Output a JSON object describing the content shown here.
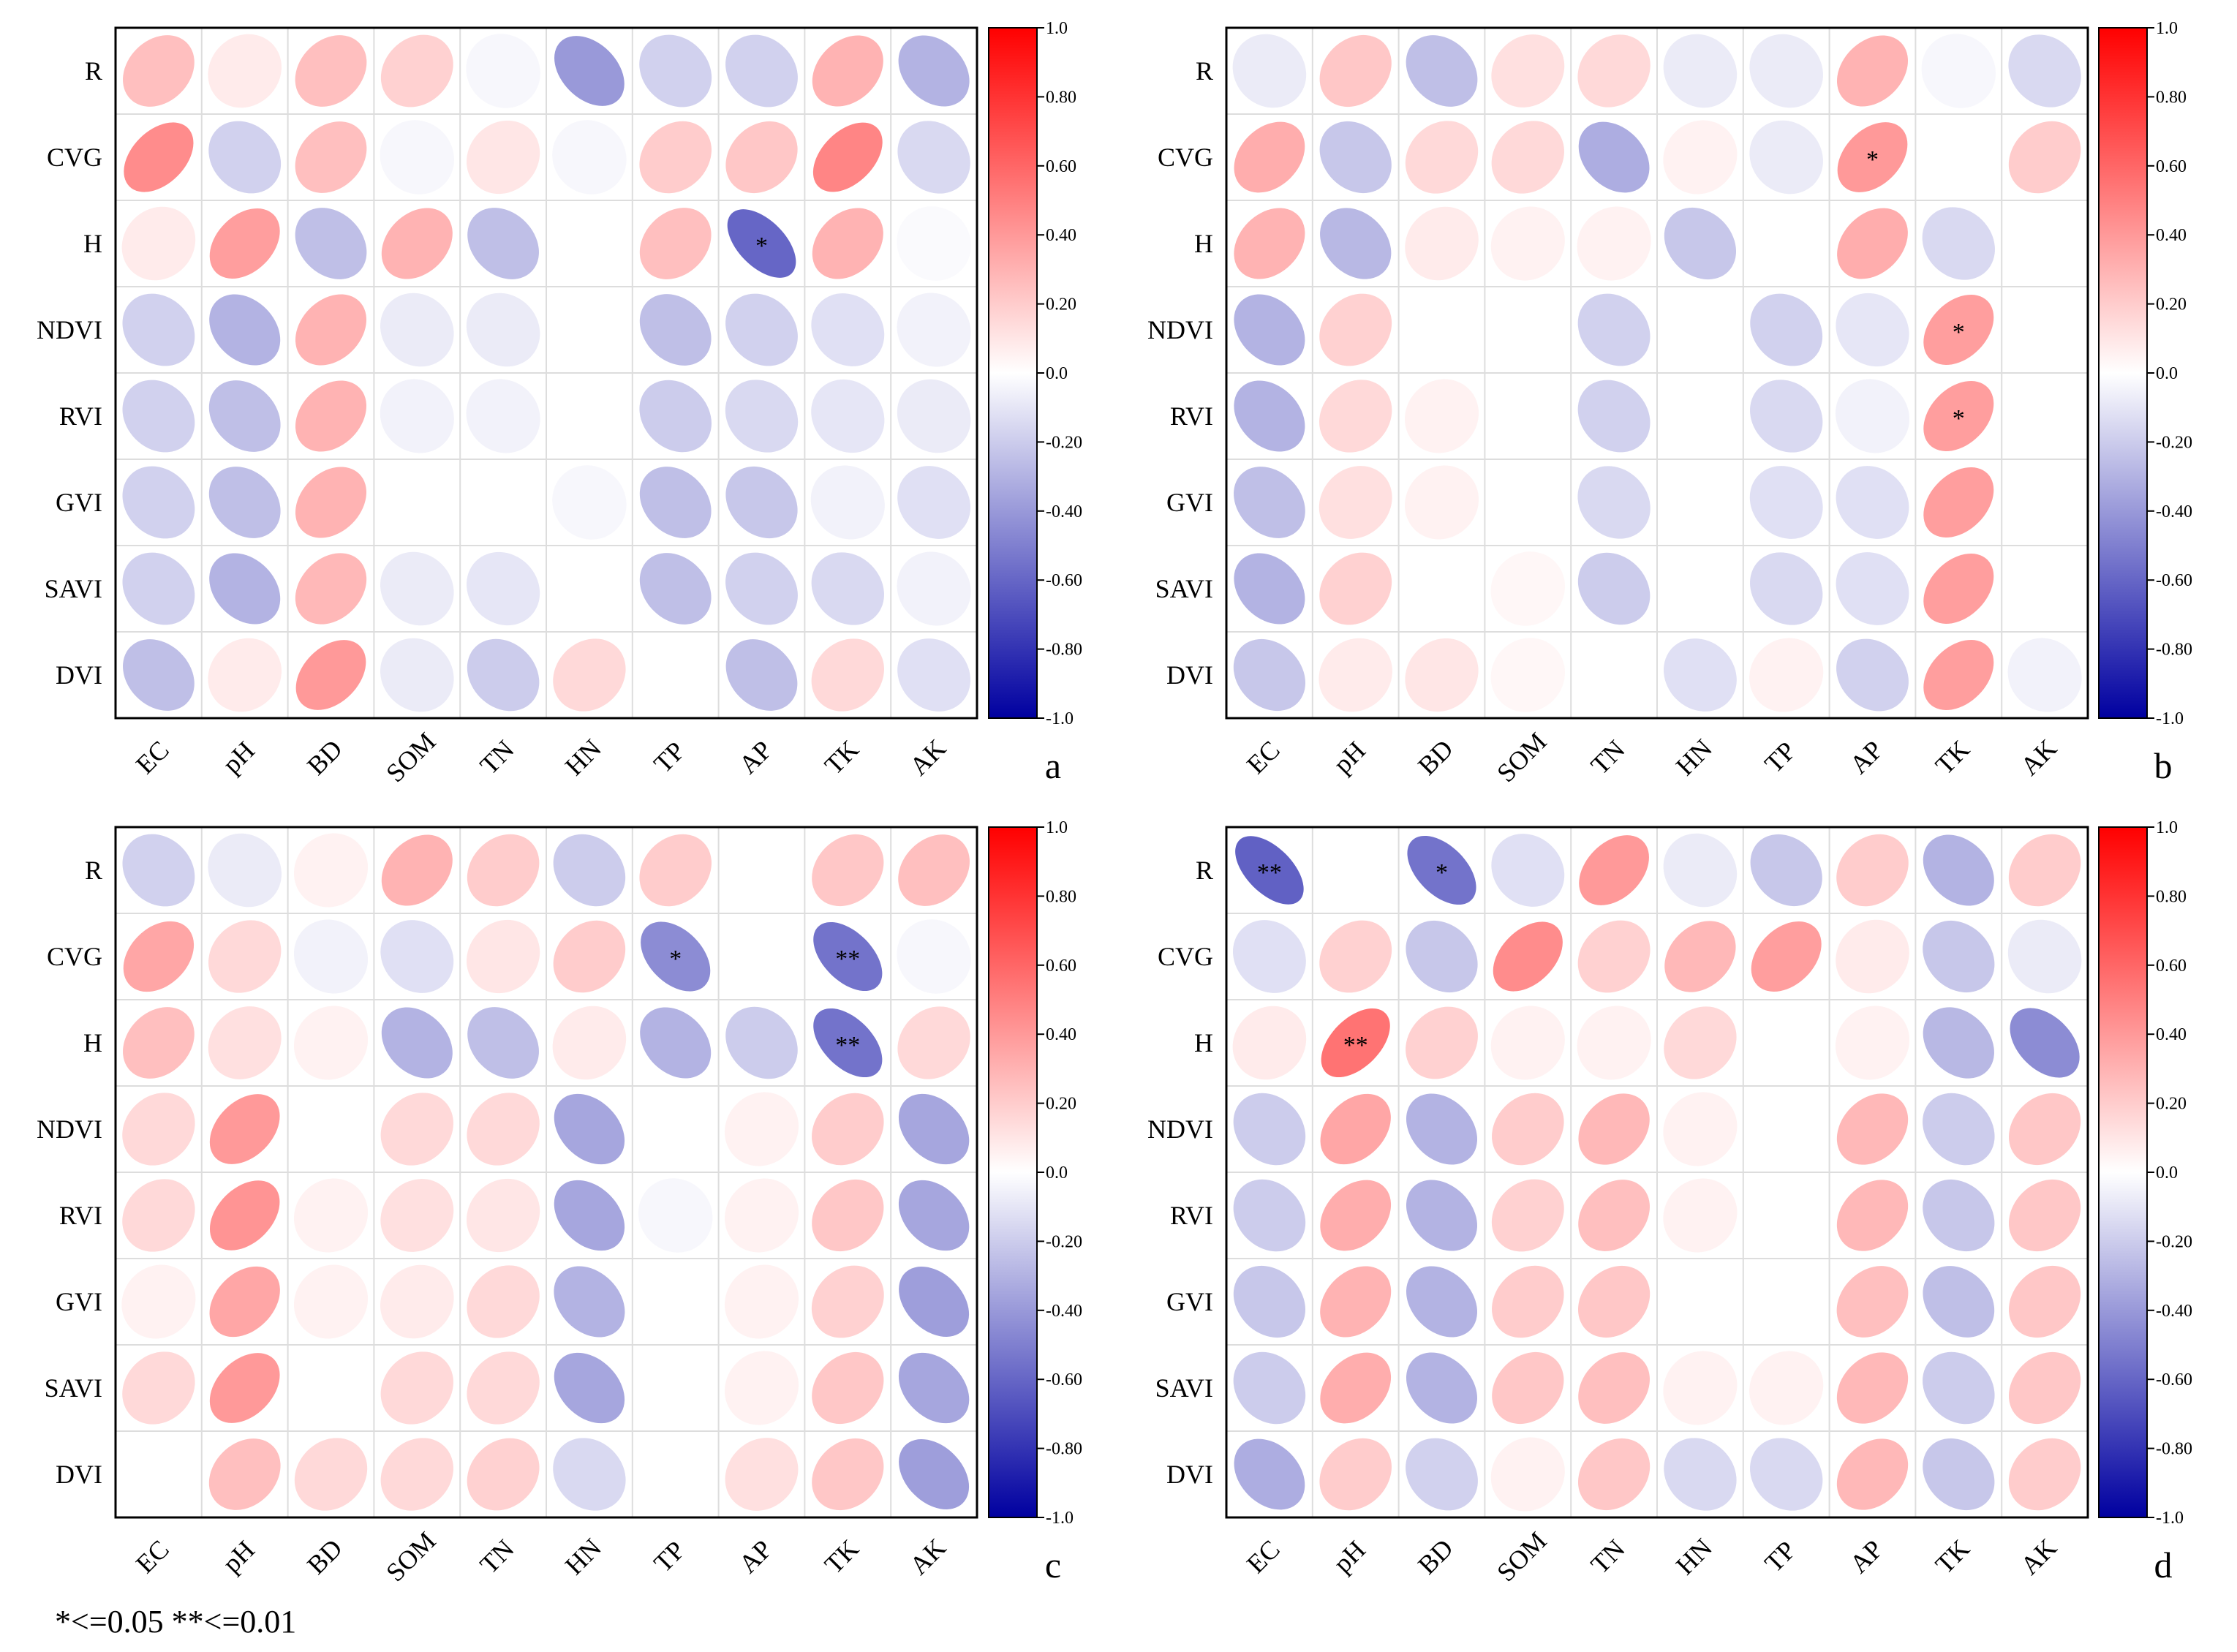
{
  "figure_note": "*<=0.05 **<=0.01",
  "colors": {
    "positive": "#ff0000",
    "neutral": "#ffffff",
    "negative": "#0000a0",
    "grid": "#dddddd",
    "frame": "#000000"
  },
  "chart_data": [
    {
      "type": "heatmap",
      "panel_label": "a",
      "rows": [
        "R",
        "CVG",
        "H",
        "NDVI",
        "RVI",
        "GVI",
        "SAVI",
        "DVI"
      ],
      "columns": [
        "EC",
        "pH",
        "BD",
        "SOM",
        "TN",
        "HN",
        "TP",
        "AP",
        "TK",
        "AK"
      ],
      "colorbar_ticks": [
        "1.0",
        "0.80",
        "0.60",
        "0.40",
        "0.20",
        "0.0",
        "-0.20",
        "-0.40",
        "-0.60",
        "-0.80",
        "-1.0"
      ],
      "vlim": [
        -1,
        1
      ],
      "values": [
        [
          0.25,
          0.08,
          0.25,
          0.18,
          -0.03,
          -0.4,
          -0.18,
          -0.18,
          0.3,
          -0.3
        ],
        [
          0.45,
          -0.18,
          0.25,
          -0.03,
          0.1,
          -0.03,
          0.2,
          0.22,
          0.48,
          -0.15
        ],
        [
          0.08,
          0.38,
          -0.25,
          0.3,
          -0.25,
          0.0,
          0.25,
          -0.6,
          0.3,
          -0.02
        ],
        [
          -0.18,
          -0.3,
          0.3,
          -0.08,
          -0.08,
          0.0,
          -0.25,
          -0.18,
          -0.12,
          -0.05
        ],
        [
          -0.18,
          -0.25,
          0.3,
          -0.05,
          -0.05,
          0.0,
          -0.2,
          -0.15,
          -0.1,
          -0.08
        ],
        [
          -0.18,
          -0.25,
          0.3,
          0.0,
          0.0,
          -0.03,
          -0.25,
          -0.22,
          -0.05,
          -0.12
        ],
        [
          -0.18,
          -0.3,
          0.28,
          -0.08,
          -0.1,
          0.0,
          -0.25,
          -0.18,
          -0.15,
          -0.05
        ],
        [
          -0.25,
          0.08,
          0.4,
          -0.08,
          -0.2,
          0.15,
          0.0,
          -0.25,
          0.15,
          -0.12
        ]
      ],
      "significance": [
        [
          "",
          "",
          "",
          "",
          "",
          "",
          "",
          "",
          "",
          ""
        ],
        [
          "",
          "",
          "",
          "",
          "",
          "",
          "",
          "",
          "",
          ""
        ],
        [
          "",
          "",
          "",
          "",
          "",
          "",
          "",
          "*",
          "",
          ""
        ],
        [
          "",
          "",
          "",
          "",
          "",
          "",
          "",
          "",
          "",
          ""
        ],
        [
          "",
          "",
          "",
          "",
          "",
          "",
          "",
          "",
          "",
          ""
        ],
        [
          "",
          "",
          "",
          "",
          "",
          "",
          "",
          "",
          "",
          ""
        ],
        [
          "",
          "",
          "",
          "",
          "",
          "",
          "",
          "",
          "",
          ""
        ],
        [
          "",
          "",
          "",
          "",
          "",
          "",
          "",
          "",
          "",
          ""
        ]
      ]
    },
    {
      "type": "heatmap",
      "panel_label": "b",
      "rows": [
        "R",
        "CVG",
        "H",
        "NDVI",
        "RVI",
        "GVI",
        "SAVI",
        "DVI"
      ],
      "columns": [
        "EC",
        "pH",
        "BD",
        "SOM",
        "TN",
        "HN",
        "TP",
        "AP",
        "TK",
        "AK"
      ],
      "colorbar_ticks": [
        "1.0",
        "0.80",
        "0.60",
        "0.40",
        "0.20",
        "0.0",
        "-0.20",
        "-0.40",
        "-0.60",
        "-0.80",
        "-1.0"
      ],
      "vlim": [
        -1,
        1
      ],
      "values": [
        [
          -0.08,
          0.22,
          -0.25,
          0.12,
          0.15,
          -0.08,
          -0.08,
          0.3,
          -0.03,
          -0.15
        ],
        [
          0.32,
          -0.22,
          0.15,
          0.15,
          -0.32,
          0.05,
          -0.08,
          0.4,
          0.0,
          0.2
        ],
        [
          0.3,
          -0.28,
          0.08,
          0.05,
          0.05,
          -0.22,
          0.0,
          0.32,
          -0.15,
          0.0
        ],
        [
          -0.3,
          0.18,
          0.0,
          0.0,
          -0.18,
          0.0,
          -0.18,
          -0.1,
          0.38,
          0.0
        ],
        [
          -0.3,
          0.15,
          0.05,
          0.0,
          -0.18,
          0.0,
          -0.15,
          -0.05,
          0.38,
          0.0
        ],
        [
          -0.25,
          0.12,
          0.05,
          0.0,
          -0.15,
          0.0,
          -0.12,
          -0.12,
          0.38,
          0.0
        ],
        [
          -0.3,
          0.18,
          0.0,
          0.03,
          -0.2,
          0.0,
          -0.15,
          -0.12,
          0.38,
          0.0
        ],
        [
          -0.22,
          0.08,
          0.1,
          0.03,
          0.0,
          -0.12,
          0.05,
          -0.18,
          0.38,
          -0.05
        ]
      ],
      "significance": [
        [
          "",
          "",
          "",
          "",
          "",
          "",
          "",
          "",
          "",
          ""
        ],
        [
          "",
          "",
          "",
          "",
          "",
          "",
          "",
          "*",
          "",
          ""
        ],
        [
          "",
          "",
          "",
          "",
          "",
          "",
          "",
          "",
          "",
          ""
        ],
        [
          "",
          "",
          "",
          "",
          "",
          "",
          "",
          "",
          "*",
          ""
        ],
        [
          "",
          "",
          "",
          "",
          "",
          "",
          "",
          "",
          "*",
          ""
        ],
        [
          "",
          "",
          "",
          "",
          "",
          "",
          "",
          "",
          "",
          ""
        ],
        [
          "",
          "",
          "",
          "",
          "",
          "",
          "",
          "",
          "",
          ""
        ],
        [
          "",
          "",
          "",
          "",
          "",
          "",
          "",
          "",
          "",
          ""
        ]
      ]
    },
    {
      "type": "heatmap",
      "panel_label": "c",
      "rows": [
        "R",
        "CVG",
        "H",
        "NDVI",
        "RVI",
        "GVI",
        "SAVI",
        "DVI"
      ],
      "columns": [
        "EC",
        "pH",
        "BD",
        "SOM",
        "TN",
        "HN",
        "TP",
        "AP",
        "TK",
        "AK"
      ],
      "colorbar_ticks": [
        "1.0",
        "0.80",
        "0.60",
        "0.40",
        "0.20",
        "0.0",
        "-0.20",
        "-0.40",
        "-0.60",
        "-0.80",
        "-1.0"
      ],
      "vlim": [
        -1,
        1
      ],
      "values": [
        [
          -0.18,
          -0.08,
          0.05,
          0.3,
          0.2,
          -0.2,
          0.2,
          0.0,
          0.22,
          0.25
        ],
        [
          0.35,
          0.15,
          -0.05,
          -0.12,
          0.1,
          0.2,
          -0.45,
          0.0,
          -0.55,
          -0.03
        ],
        [
          0.25,
          0.12,
          0.05,
          -0.3,
          -0.25,
          0.08,
          -0.3,
          -0.2,
          -0.55,
          0.15
        ],
        [
          0.15,
          0.4,
          0.0,
          0.15,
          0.15,
          -0.35,
          0.0,
          0.05,
          0.2,
          -0.35
        ],
        [
          0.15,
          0.42,
          0.05,
          0.12,
          0.1,
          -0.35,
          -0.03,
          0.05,
          0.22,
          -0.35
        ],
        [
          0.05,
          0.35,
          0.05,
          0.08,
          0.15,
          -0.3,
          0.0,
          0.05,
          0.18,
          -0.38
        ],
        [
          0.15,
          0.4,
          0.0,
          0.15,
          0.15,
          -0.35,
          0.0,
          0.05,
          0.22,
          -0.35
        ],
        [
          0.0,
          0.25,
          0.15,
          0.15,
          0.18,
          -0.15,
          0.0,
          0.12,
          0.22,
          -0.38
        ]
      ],
      "significance": [
        [
          "",
          "",
          "",
          "",
          "",
          "",
          "",
          "",
          "",
          ""
        ],
        [
          "",
          "",
          "",
          "",
          "",
          "",
          "*",
          "",
          "**",
          ""
        ],
        [
          "",
          "",
          "",
          "",
          "",
          "",
          "",
          "",
          "**",
          ""
        ],
        [
          "",
          "",
          "",
          "",
          "",
          "",
          "",
          "",
          "",
          ""
        ],
        [
          "",
          "",
          "",
          "",
          "",
          "",
          "",
          "",
          "",
          ""
        ],
        [
          "",
          "",
          "",
          "",
          "",
          "",
          "",
          "",
          "",
          ""
        ],
        [
          "",
          "",
          "",
          "",
          "",
          "",
          "",
          "",
          "",
          ""
        ],
        [
          "",
          "",
          "",
          "",
          "",
          "",
          "",
          "",
          "",
          ""
        ]
      ]
    },
    {
      "type": "heatmap",
      "panel_label": "d",
      "rows": [
        "R",
        "CVG",
        "H",
        "NDVI",
        "RVI",
        "GVI",
        "SAVI",
        "DVI"
      ],
      "columns": [
        "EC",
        "pH",
        "BD",
        "SOM",
        "TN",
        "HN",
        "TP",
        "AP",
        "TK",
        "AK"
      ],
      "colorbar_ticks": [
        "1.0",
        "0.80",
        "0.60",
        "0.40",
        "0.20",
        "0.0",
        "-0.20",
        "-0.40",
        "-0.60",
        "-0.80",
        "-1.0"
      ],
      "vlim": [
        -1,
        1
      ],
      "values": [
        [
          -0.62,
          0.0,
          -0.55,
          -0.12,
          0.4,
          -0.08,
          -0.22,
          0.2,
          -0.3,
          0.2
        ],
        [
          -0.12,
          0.18,
          -0.22,
          0.45,
          0.18,
          0.28,
          0.38,
          0.08,
          -0.22,
          -0.08
        ],
        [
          0.08,
          0.55,
          0.18,
          0.05,
          0.05,
          0.15,
          0.0,
          0.05,
          -0.28,
          -0.45
        ],
        [
          -0.2,
          0.35,
          -0.3,
          0.2,
          0.28,
          0.05,
          0.0,
          0.28,
          -0.2,
          0.22
        ],
        [
          -0.2,
          0.32,
          -0.3,
          0.18,
          0.25,
          0.05,
          0.0,
          0.28,
          -0.22,
          0.22
        ],
        [
          -0.22,
          0.3,
          -0.3,
          0.2,
          0.22,
          0.0,
          0.0,
          0.25,
          -0.25,
          0.22
        ],
        [
          -0.2,
          0.32,
          -0.3,
          0.22,
          0.25,
          0.05,
          0.05,
          0.28,
          -0.2,
          0.22
        ],
        [
          -0.32,
          0.2,
          -0.18,
          0.05,
          0.22,
          -0.15,
          -0.15,
          0.28,
          -0.22,
          0.2
        ]
      ],
      "significance": [
        [
          "**",
          "",
          "*",
          "",
          "",
          "",
          "",
          "",
          "",
          ""
        ],
        [
          "",
          "",
          "",
          "",
          "",
          "",
          "",
          "",
          "",
          ""
        ],
        [
          "",
          "**",
          "",
          "",
          "",
          "",
          "",
          "",
          "",
          ""
        ],
        [
          "",
          "",
          "",
          "",
          "",
          "",
          "",
          "",
          "",
          ""
        ],
        [
          "",
          "",
          "",
          "",
          "",
          "",
          "",
          "",
          "",
          ""
        ],
        [
          "",
          "",
          "",
          "",
          "",
          "",
          "",
          "",
          "",
          ""
        ],
        [
          "",
          "",
          "",
          "",
          "",
          "",
          "",
          "",
          "",
          ""
        ],
        [
          "",
          "",
          "",
          "",
          "",
          "",
          "",
          "",
          "",
          ""
        ]
      ]
    }
  ]
}
